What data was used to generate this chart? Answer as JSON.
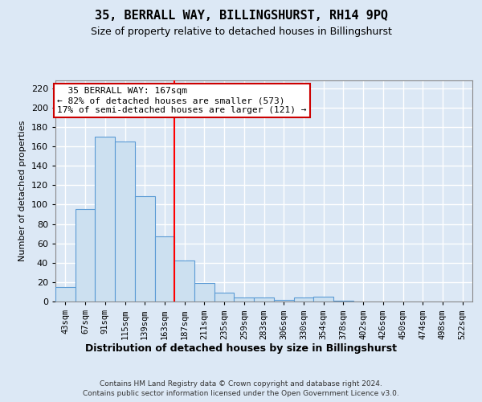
{
  "title_line1": "35, BERRALL WAY, BILLINGSHURST, RH14 9PQ",
  "title_line2": "Size of property relative to detached houses in Billingshurst",
  "xlabel": "Distribution of detached houses by size in Billingshurst",
  "ylabel": "Number of detached properties",
  "categories": [
    "43sqm",
    "67sqm",
    "91sqm",
    "115sqm",
    "139sqm",
    "163sqm",
    "187sqm",
    "211sqm",
    "235sqm",
    "259sqm",
    "283sqm",
    "306sqm",
    "330sqm",
    "354sqm",
    "378sqm",
    "402sqm",
    "426sqm",
    "450sqm",
    "474sqm",
    "498sqm",
    "522sqm"
  ],
  "values": [
    15,
    95,
    170,
    165,
    109,
    67,
    42,
    19,
    9,
    4,
    4,
    2,
    4,
    5,
    1,
    0,
    0,
    0,
    0,
    0,
    0
  ],
  "bar_color_fill": "#cce0f0",
  "bar_color_edge": "#5b9bd5",
  "background_color": "#dce8f5",
  "plot_bg_color": "#dce8f5",
  "grid_color": "#ffffff",
  "vline_position": 5.5,
  "vline_color": "red",
  "annotation_text": "  35 BERRALL WAY: 167sqm  \n← 82% of detached houses are smaller (573)\n17% of semi-detached houses are larger (121) →",
  "annotation_box_color": "white",
  "annotation_box_edge": "#cc0000",
  "ylim_max": 228,
  "yticks": [
    0,
    20,
    40,
    60,
    80,
    100,
    120,
    140,
    160,
    180,
    200,
    220
  ],
  "footnote_line1": "Contains HM Land Registry data © Crown copyright and database right 2024.",
  "footnote_line2": "Contains public sector information licensed under the Open Government Licence v3.0.",
  "title1_fontsize": 11,
  "title2_fontsize": 9,
  "ylabel_fontsize": 8,
  "xlabel_fontsize": 9,
  "tick_fontsize": 7.5,
  "annotation_fontsize": 8
}
